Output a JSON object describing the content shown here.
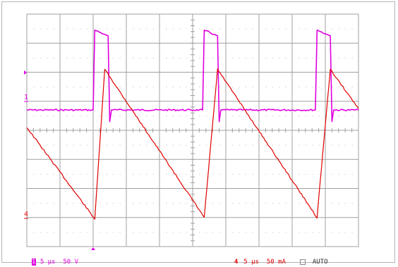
{
  "display": {
    "grid_divisions": {
      "x": 10,
      "y": 8
    },
    "colors": {
      "grid": "#a0a0a0",
      "grid_dots": "#b8b8b8",
      "ch1": "#e000e0",
      "ch4": "#e00000",
      "text": "#303030"
    }
  },
  "markers": {
    "ch1_label": "1",
    "ch4_label": "4"
  },
  "status_bar": {
    "ch1_number": "1",
    "ch1_settings": "5 µs  50 V",
    "ch4_number": "4",
    "ch4_settings": "5 µs  50 mA",
    "trigger_mode": "AUTO"
  },
  "chart_data": {
    "type": "line",
    "title": "",
    "xlabel": "",
    "ylabel": "",
    "x_unit_per_div": "5 µs",
    "xlim_div": [
      0,
      10
    ],
    "ylim_div": [
      -4,
      4
    ],
    "grid": true,
    "series": [
      {
        "name": "",
        "channel": "1",
        "color": "#e000e0",
        "x_div": [
          0.0,
          2.0,
          2.05,
          2.15,
          2.35,
          2.45,
          2.5,
          2.55,
          2.65,
          5.3,
          5.35,
          5.45,
          5.65,
          5.75,
          5.8,
          5.85,
          5.95,
          8.7,
          8.75,
          8.85,
          9.05,
          9.15,
          9.2,
          9.25,
          9.35,
          10.0
        ],
        "y_div": [
          0.7,
          0.7,
          3.45,
          3.4,
          3.3,
          3.25,
          0.3,
          0.7,
          0.7,
          0.7,
          3.45,
          3.4,
          3.3,
          3.25,
          0.3,
          0.7,
          0.7,
          0.7,
          3.45,
          3.4,
          3.3,
          3.25,
          0.3,
          0.7,
          0.7,
          0.7
        ]
      },
      {
        "name": "",
        "channel": "4",
        "color": "#e00000",
        "x_div": [
          0.0,
          2.05,
          2.35,
          5.35,
          5.75,
          8.75,
          9.15,
          10.0
        ],
        "y_div": [
          0.1,
          -3.05,
          2.1,
          -3.0,
          2.1,
          -3.0,
          2.1,
          0.75
        ]
      }
    ]
  }
}
